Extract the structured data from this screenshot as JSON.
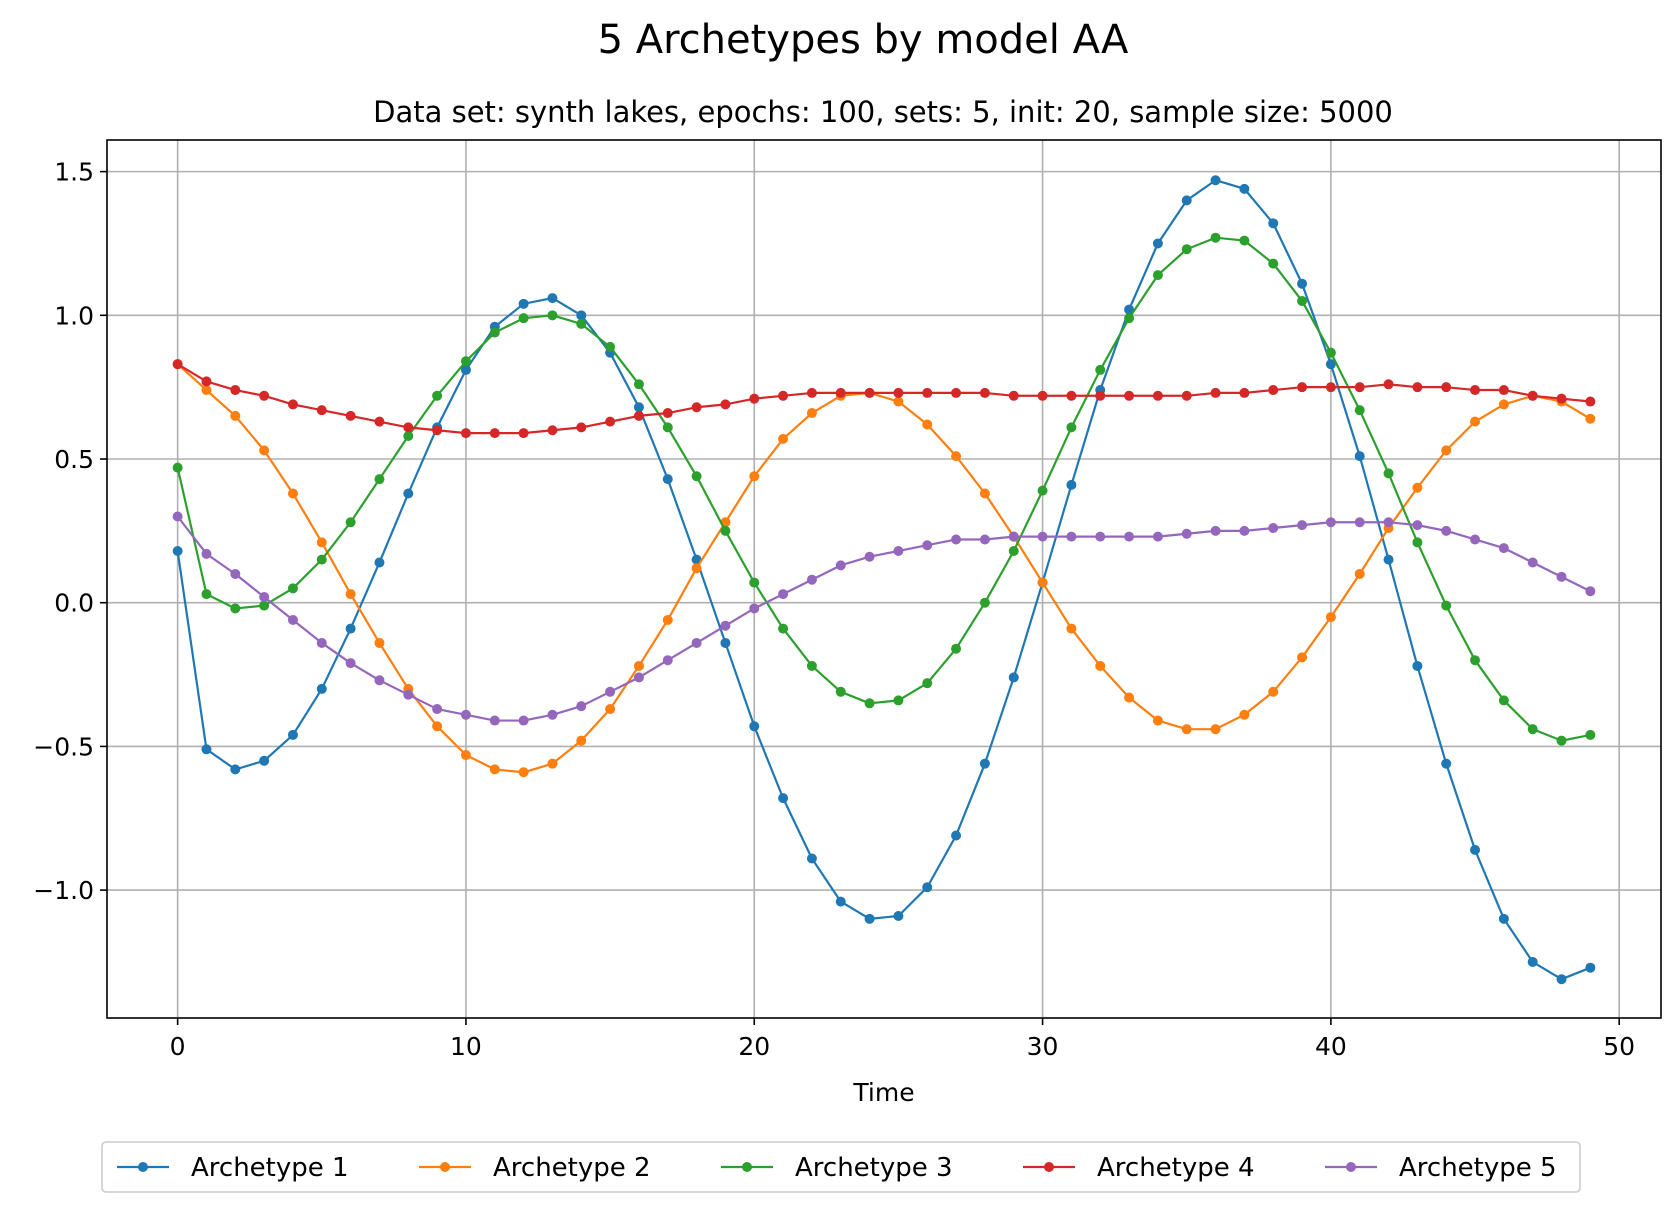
{
  "chart_data": {
    "type": "line",
    "title": "5 Archetypes by model AA",
    "subtitle": "Data set: synth lakes, epochs: 100, sets: 5, init: 20, sample size: 5000",
    "xlabel": "Time",
    "ylabel": "",
    "xlim": [
      -2.45,
      51.45
    ],
    "ylim": [
      -1.445,
      1.61
    ],
    "xticks": [
      0,
      10,
      20,
      30,
      40,
      50
    ],
    "xtick_labels": [
      "0",
      "10",
      "20",
      "30",
      "40",
      "50"
    ],
    "yticks": [
      -1.0,
      -0.5,
      0.0,
      0.5,
      1.0,
      1.5
    ],
    "ytick_labels": [
      "−1.0",
      "−0.5",
      "0.0",
      "0.5",
      "1.0",
      "1.5"
    ],
    "grid": true,
    "legend_position": "bottom-center",
    "x": [
      0,
      1,
      2,
      3,
      4,
      5,
      6,
      7,
      8,
      9,
      10,
      11,
      12,
      13,
      14,
      15,
      16,
      17,
      18,
      19,
      20,
      21,
      22,
      23,
      24,
      25,
      26,
      27,
      28,
      29,
      30,
      31,
      32,
      33,
      34,
      35,
      36,
      37,
      38,
      39,
      40,
      41,
      42,
      43,
      44,
      45,
      46,
      47,
      48,
      49
    ],
    "series": [
      {
        "name": "Archetype 1",
        "color": "#1f77b4",
        "values": [
          0.18,
          -0.51,
          -0.58,
          -0.55,
          -0.46,
          -0.3,
          -0.09,
          0.14,
          0.38,
          0.61,
          0.81,
          0.96,
          1.04,
          1.06,
          1.0,
          0.87,
          0.68,
          0.43,
          0.15,
          -0.14,
          -0.43,
          -0.68,
          -0.89,
          -1.04,
          -1.1,
          -1.09,
          -0.99,
          -0.81,
          -0.56,
          -0.26,
          0.07,
          0.41,
          0.74,
          1.02,
          1.25,
          1.4,
          1.47,
          1.44,
          1.32,
          1.11,
          0.83,
          0.51,
          0.15,
          -0.22,
          -0.56,
          -0.86,
          -1.1,
          -1.25,
          -1.31,
          -1.27
        ]
      },
      {
        "name": "Archetype 2",
        "color": "#ff7f0e",
        "values": [
          0.83,
          0.74,
          0.65,
          0.53,
          0.38,
          0.21,
          0.03,
          -0.14,
          -0.3,
          -0.43,
          -0.53,
          -0.58,
          -0.59,
          -0.56,
          -0.48,
          -0.37,
          -0.22,
          -0.06,
          0.12,
          0.28,
          0.44,
          0.57,
          0.66,
          0.72,
          0.73,
          0.7,
          0.62,
          0.51,
          0.38,
          0.23,
          0.07,
          -0.09,
          -0.22,
          -0.33,
          -0.41,
          -0.44,
          -0.44,
          -0.39,
          -0.31,
          -0.19,
          -0.05,
          0.1,
          0.26,
          0.4,
          0.53,
          0.63,
          0.69,
          0.72,
          0.7,
          0.64
        ]
      },
      {
        "name": "Archetype 3",
        "color": "#2ca02c",
        "values": [
          0.47,
          0.03,
          -0.02,
          -0.01,
          0.05,
          0.15,
          0.28,
          0.43,
          0.58,
          0.72,
          0.84,
          0.94,
          0.99,
          1.0,
          0.97,
          0.89,
          0.76,
          0.61,
          0.44,
          0.25,
          0.07,
          -0.09,
          -0.22,
          -0.31,
          -0.35,
          -0.34,
          -0.28,
          -0.16,
          0.0,
          0.18,
          0.39,
          0.61,
          0.81,
          0.99,
          1.14,
          1.23,
          1.27,
          1.26,
          1.18,
          1.05,
          0.87,
          0.67,
          0.45,
          0.21,
          -0.01,
          -0.2,
          -0.34,
          -0.44,
          -0.48,
          -0.46
        ]
      },
      {
        "name": "Archetype 4",
        "color": "#d62728",
        "values": [
          0.83,
          0.77,
          0.74,
          0.72,
          0.69,
          0.67,
          0.65,
          0.63,
          0.61,
          0.6,
          0.59,
          0.59,
          0.59,
          0.6,
          0.61,
          0.63,
          0.65,
          0.66,
          0.68,
          0.69,
          0.71,
          0.72,
          0.73,
          0.73,
          0.73,
          0.73,
          0.73,
          0.73,
          0.73,
          0.72,
          0.72,
          0.72,
          0.72,
          0.72,
          0.72,
          0.72,
          0.73,
          0.73,
          0.74,
          0.75,
          0.75,
          0.75,
          0.76,
          0.75,
          0.75,
          0.74,
          0.74,
          0.72,
          0.71,
          0.7
        ]
      },
      {
        "name": "Archetype 5",
        "color": "#9467bd",
        "values": [
          0.3,
          0.17,
          0.1,
          0.02,
          -0.06,
          -0.14,
          -0.21,
          -0.27,
          -0.32,
          -0.37,
          -0.39,
          -0.41,
          -0.41,
          -0.39,
          -0.36,
          -0.31,
          -0.26,
          -0.2,
          -0.14,
          -0.08,
          -0.02,
          0.03,
          0.08,
          0.13,
          0.16,
          0.18,
          0.2,
          0.22,
          0.22,
          0.23,
          0.23,
          0.23,
          0.23,
          0.23,
          0.23,
          0.24,
          0.25,
          0.25,
          0.26,
          0.27,
          0.28,
          0.28,
          0.28,
          0.27,
          0.25,
          0.22,
          0.19,
          0.14,
          0.09,
          0.04
        ]
      }
    ]
  }
}
